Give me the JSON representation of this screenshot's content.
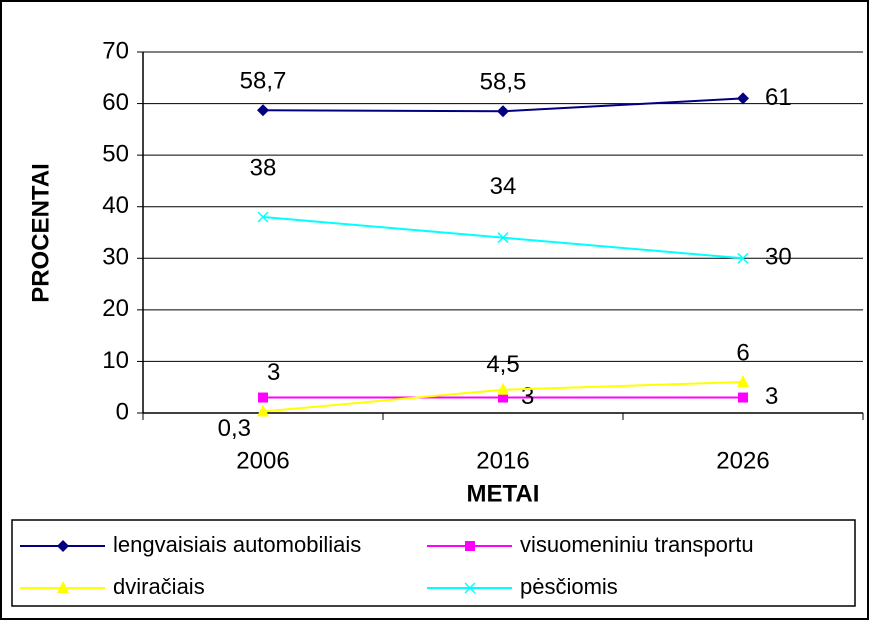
{
  "chart_data": {
    "type": "line",
    "categories": [
      "2006",
      "2016",
      "2026"
    ],
    "series": [
      {
        "name": "lengvaisiais automobiliais",
        "color": "#000080",
        "marker": "diamond",
        "values": [
          58.7,
          58.5,
          61
        ],
        "value_labels": [
          "58,7",
          "58,5",
          "61"
        ]
      },
      {
        "name": "visuomeniniu transportu",
        "color": "#ff00ff",
        "marker": "square",
        "values": [
          3,
          3,
          3
        ]
      },
      {
        "name": "dviračiais",
        "color": "#ffff00",
        "marker": "triangle",
        "values": [
          0.3,
          4.5,
          6
        ],
        "value_labels": [
          "0,3",
          "4,5",
          "6"
        ]
      },
      {
        "name": "pėsčiomis",
        "color": "#00ffff",
        "marker": "x",
        "values": [
          38,
          34,
          30
        ]
      }
    ],
    "xlabel": "METAI",
    "ylabel": "PROCENTAI",
    "ylim": [
      0,
      70
    ],
    "yticks": [
      0,
      10,
      20,
      30,
      40,
      50,
      60,
      70
    ],
    "grid": true,
    "legend": "bottom"
  }
}
